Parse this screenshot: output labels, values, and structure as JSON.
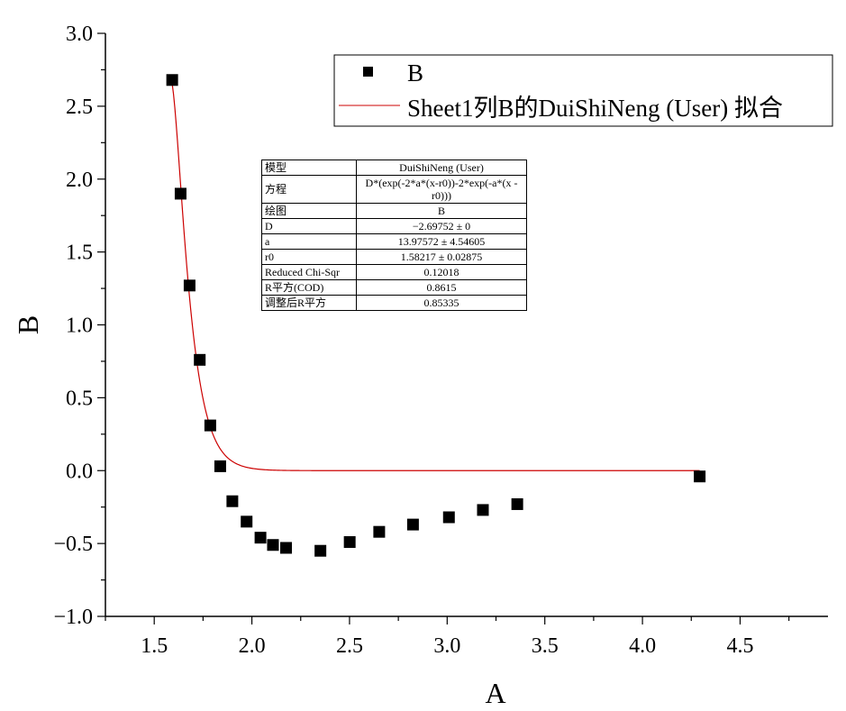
{
  "chart_data": {
    "type": "scatter",
    "xlabel": "A",
    "ylabel": "B",
    "xlim": [
      1.25,
      4.95
    ],
    "ylim": [
      -1.0,
      3.0
    ],
    "xticks": [
      "1.5",
      "2.0",
      "2.5",
      "3.0",
      "3.5",
      "4.0",
      "4.5"
    ],
    "yticks": [
      "3.0",
      "2.5",
      "2.0",
      "1.5",
      "1.0",
      "0.5",
      "0.0",
      "−0.5",
      "−1.0"
    ],
    "legend_position": "top-right",
    "series": [
      {
        "name": "B",
        "marker": "square",
        "color": "#000000",
        "x": [
          1.592,
          1.635,
          1.681,
          1.733,
          1.787,
          1.838,
          1.9,
          1.973,
          2.044,
          2.108,
          2.175,
          2.351,
          2.501,
          2.652,
          2.825,
          3.009,
          3.183,
          3.359,
          4.293
        ],
        "y": [
          2.68,
          1.9,
          1.27,
          0.76,
          0.31,
          0.03,
          -0.21,
          -0.35,
          -0.46,
          -0.51,
          -0.53,
          -0.55,
          -0.49,
          -0.42,
          -0.37,
          -0.32,
          -0.27,
          -0.23,
          -0.04
        ]
      },
      {
        "name": "Sheet1列B的DuiShiNeng (User) 拟合",
        "type": "line",
        "color": "#cc0000",
        "function": "D*(exp(-2*a*(x-r0))-2*exp(-a*(x-r0)))",
        "params": {
          "D": -2.69752,
          "a": 13.97572,
          "r0": 1.58217
        },
        "x_range": [
          1.592,
          4.293
        ]
      }
    ],
    "fit_table": [
      {
        "key": "模型",
        "value": "DuiShiNeng (User)"
      },
      {
        "key": "方程",
        "value": "D*(exp(-2*a*(x-r0))-2*exp(-a*(x -r0)))"
      },
      {
        "key": "绘图",
        "value": "B"
      },
      {
        "key": "D",
        "value": "−2.69752 ± 0"
      },
      {
        "key": "a",
        "value": "13.97572 ± 4.54605"
      },
      {
        "key": "r0",
        "value": "1.58217 ± 0.02875"
      },
      {
        "key": "Reduced Chi-Sqr",
        "value": "0.12018"
      },
      {
        "key": "R平方(COD)",
        "value": "0.8615"
      },
      {
        "key": "调整后R平方",
        "value": "0.85335"
      }
    ]
  }
}
